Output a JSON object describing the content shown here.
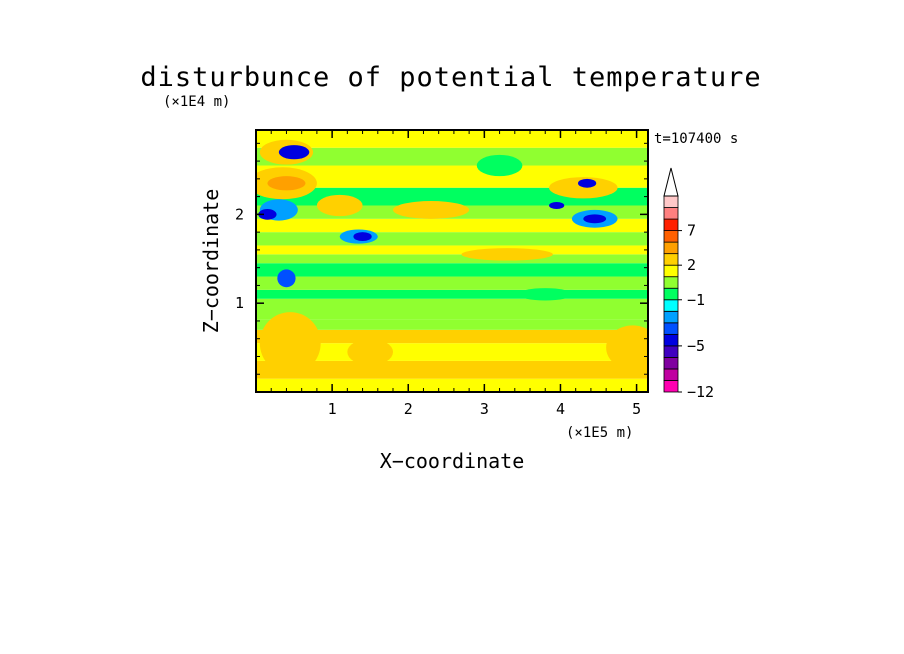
{
  "chart_data": {
    "type": "heatmap",
    "title": "disturbunce of potential temperature",
    "time_label": "t=107400 s",
    "x_unit": "(×1E5 m)",
    "y_unit": "(×1E4 m)",
    "xlabel": "X−coordinate",
    "ylabel": "Z−coordinate",
    "xlim": [
      0,
      5.15
    ],
    "ylim": [
      0,
      2.95
    ],
    "x_ticks": [
      "1",
      "2",
      "3",
      "4",
      "5"
    ],
    "y_ticks": [
      "1",
      "2"
    ],
    "x_tick_values": [
      1,
      2,
      3,
      4,
      5
    ],
    "y_tick_values": [
      1,
      2
    ],
    "colorbar": {
      "levels": [
        -12,
        -10,
        -8,
        -6,
        -5,
        -4,
        -3,
        -2,
        -1,
        0,
        1,
        2,
        3,
        5,
        7,
        9,
        11
      ],
      "labeled": [
        {
          "value": -12,
          "label": "−12"
        },
        {
          "value": -5,
          "label": "−5"
        },
        {
          "value": -1,
          "label": "−1"
        },
        {
          "value": 2,
          "label": "2"
        },
        {
          "value": 7,
          "label": "7"
        }
      ],
      "colors": [
        "#ff00b0",
        "#c000a0",
        "#8000a0",
        "#4000c0",
        "#0000e0",
        "#0050ff",
        "#00a0ff",
        "#00ffff",
        "#00ff60",
        "#90ff30",
        "#ffff00",
        "#ffd000",
        "#ffa000",
        "#ff6000",
        "#ff2000",
        "#ff8080",
        "#ffc8c8"
      ],
      "extend": "max"
    },
    "bands": [
      {
        "z0": 0.0,
        "z1": 0.15,
        "value": 1.5
      },
      {
        "z0": 0.15,
        "z1": 0.35,
        "value": 2.5
      },
      {
        "z0": 0.35,
        "z1": 0.55,
        "value": 1.5
      },
      {
        "z0": 0.55,
        "z1": 0.7,
        "value": 2.5
      },
      {
        "z0": 0.7,
        "z1": 0.82,
        "value": 0.5
      },
      {
        "z0": 0.82,
        "z1": 1.05,
        "value": 0.5
      },
      {
        "z0": 1.05,
        "z1": 1.15,
        "value": -0.5
      },
      {
        "z0": 1.15,
        "z1": 1.3,
        "value": 0.5
      },
      {
        "z0": 1.3,
        "z1": 1.45,
        "value": -0.5
      },
      {
        "z0": 1.45,
        "z1": 1.55,
        "value": 0.5
      },
      {
        "z0": 1.55,
        "z1": 1.65,
        "value": 1.5
      },
      {
        "z0": 1.65,
        "z1": 1.8,
        "value": 0.5
      },
      {
        "z0": 1.8,
        "z1": 1.95,
        "value": 1.5
      },
      {
        "z0": 1.95,
        "z1": 2.1,
        "value": 0.5
      },
      {
        "z0": 2.1,
        "z1": 2.3,
        "value": -0.5
      },
      {
        "z0": 2.3,
        "z1": 2.55,
        "value": 1.5
      },
      {
        "z0": 2.55,
        "z1": 2.75,
        "value": 0.5
      },
      {
        "z0": 2.75,
        "z1": 2.95,
        "value": 1.5
      }
    ],
    "features": [
      {
        "x": 0.4,
        "z": 2.7,
        "rx": 0.35,
        "rz": 0.14,
        "value": 2.5
      },
      {
        "x": 0.5,
        "z": 2.7,
        "rx": 0.2,
        "rz": 0.08,
        "value": -4.5
      },
      {
        "x": 0.35,
        "z": 2.35,
        "rx": 0.45,
        "rz": 0.18,
        "value": 2.5
      },
      {
        "x": 0.4,
        "z": 2.35,
        "rx": 0.25,
        "rz": 0.08,
        "value": 4.0
      },
      {
        "x": 0.3,
        "z": 2.05,
        "rx": 0.25,
        "rz": 0.12,
        "value": -2.5
      },
      {
        "x": 0.15,
        "z": 2.0,
        "rx": 0.12,
        "rz": 0.06,
        "value": -4.5
      },
      {
        "x": 0.4,
        "z": 1.28,
        "rx": 0.12,
        "rz": 0.1,
        "value": -3.5
      },
      {
        "x": 0.45,
        "z": 0.55,
        "rx": 0.4,
        "rz": 0.35,
        "value": 2.5
      },
      {
        "x": 1.1,
        "z": 2.1,
        "rx": 0.3,
        "rz": 0.12,
        "value": 2.5
      },
      {
        "x": 1.35,
        "z": 1.75,
        "rx": 0.25,
        "rz": 0.08,
        "value": -2.5
      },
      {
        "x": 1.4,
        "z": 1.75,
        "rx": 0.12,
        "rz": 0.05,
        "value": -4.5
      },
      {
        "x": 2.3,
        "z": 2.05,
        "rx": 0.5,
        "rz": 0.1,
        "value": 2.5
      },
      {
        "x": 3.2,
        "z": 2.55,
        "rx": 0.3,
        "rz": 0.12,
        "value": -0.5
      },
      {
        "x": 3.8,
        "z": 1.1,
        "rx": 0.35,
        "rz": 0.07,
        "value": -0.5
      },
      {
        "x": 4.3,
        "z": 2.3,
        "rx": 0.45,
        "rz": 0.12,
        "value": 2.5
      },
      {
        "x": 4.45,
        "z": 1.95,
        "rx": 0.3,
        "rz": 0.1,
        "value": -2.5
      },
      {
        "x": 4.45,
        "z": 1.95,
        "rx": 0.15,
        "rz": 0.05,
        "value": -4.5
      },
      {
        "x": 4.35,
        "z": 2.35,
        "rx": 0.12,
        "rz": 0.05,
        "value": -4.5
      },
      {
        "x": 3.95,
        "z": 2.1,
        "rx": 0.1,
        "rz": 0.04,
        "value": -4.5
      },
      {
        "x": 4.95,
        "z": 0.5,
        "rx": 0.35,
        "rz": 0.25,
        "value": 2.5
      },
      {
        "x": 1.5,
        "z": 0.45,
        "rx": 0.3,
        "rz": 0.15,
        "value": 2.5
      },
      {
        "x": 3.3,
        "z": 1.55,
        "rx": 0.6,
        "rz": 0.07,
        "value": 2.5
      }
    ]
  }
}
